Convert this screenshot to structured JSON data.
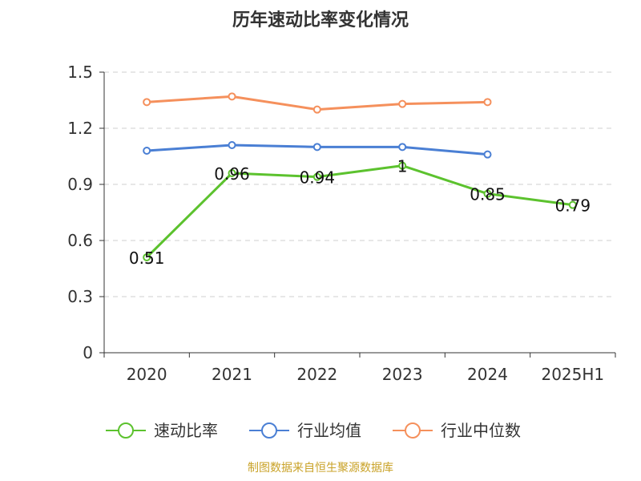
{
  "colors": {
    "速动比率": "#5cc22e",
    "行业均值": "#4a7fd4",
    "行业中位数": "#f5905c",
    "grid": "#cfcfcf",
    "axis": "#333333",
    "source": "#c9a227"
  },
  "chart_data": {
    "type": "line",
    "title": "历年速动比率变化情况",
    "categories": [
      "2020",
      "2021",
      "2022",
      "2023",
      "2024",
      "2025H1"
    ],
    "ylim": [
      0,
      1.5
    ],
    "yticks": [
      0,
      0.3,
      0.6,
      0.9,
      1.2,
      1.5
    ],
    "ytick_labels": [
      "0",
      "0.3",
      "0.6",
      "0.9",
      "1.2",
      "1.5"
    ],
    "grid": "horizontal dashed",
    "legend_position": "bottom",
    "series": [
      {
        "name": "速动比率",
        "values": [
          0.51,
          0.96,
          0.94,
          1.0,
          0.85,
          0.79
        ],
        "labels": [
          "0.51",
          "0.96",
          "0.94",
          "1",
          "0.85",
          "0.79"
        ],
        "show_labels": true
      },
      {
        "name": "行业均值",
        "values": [
          1.08,
          1.11,
          1.1,
          1.1,
          1.06,
          null
        ],
        "show_labels": false
      },
      {
        "name": "行业中位数",
        "values": [
          1.34,
          1.37,
          1.3,
          1.33,
          1.34,
          null
        ],
        "show_labels": false
      }
    ]
  },
  "source_text": "制图数据来自恒生聚源数据库"
}
